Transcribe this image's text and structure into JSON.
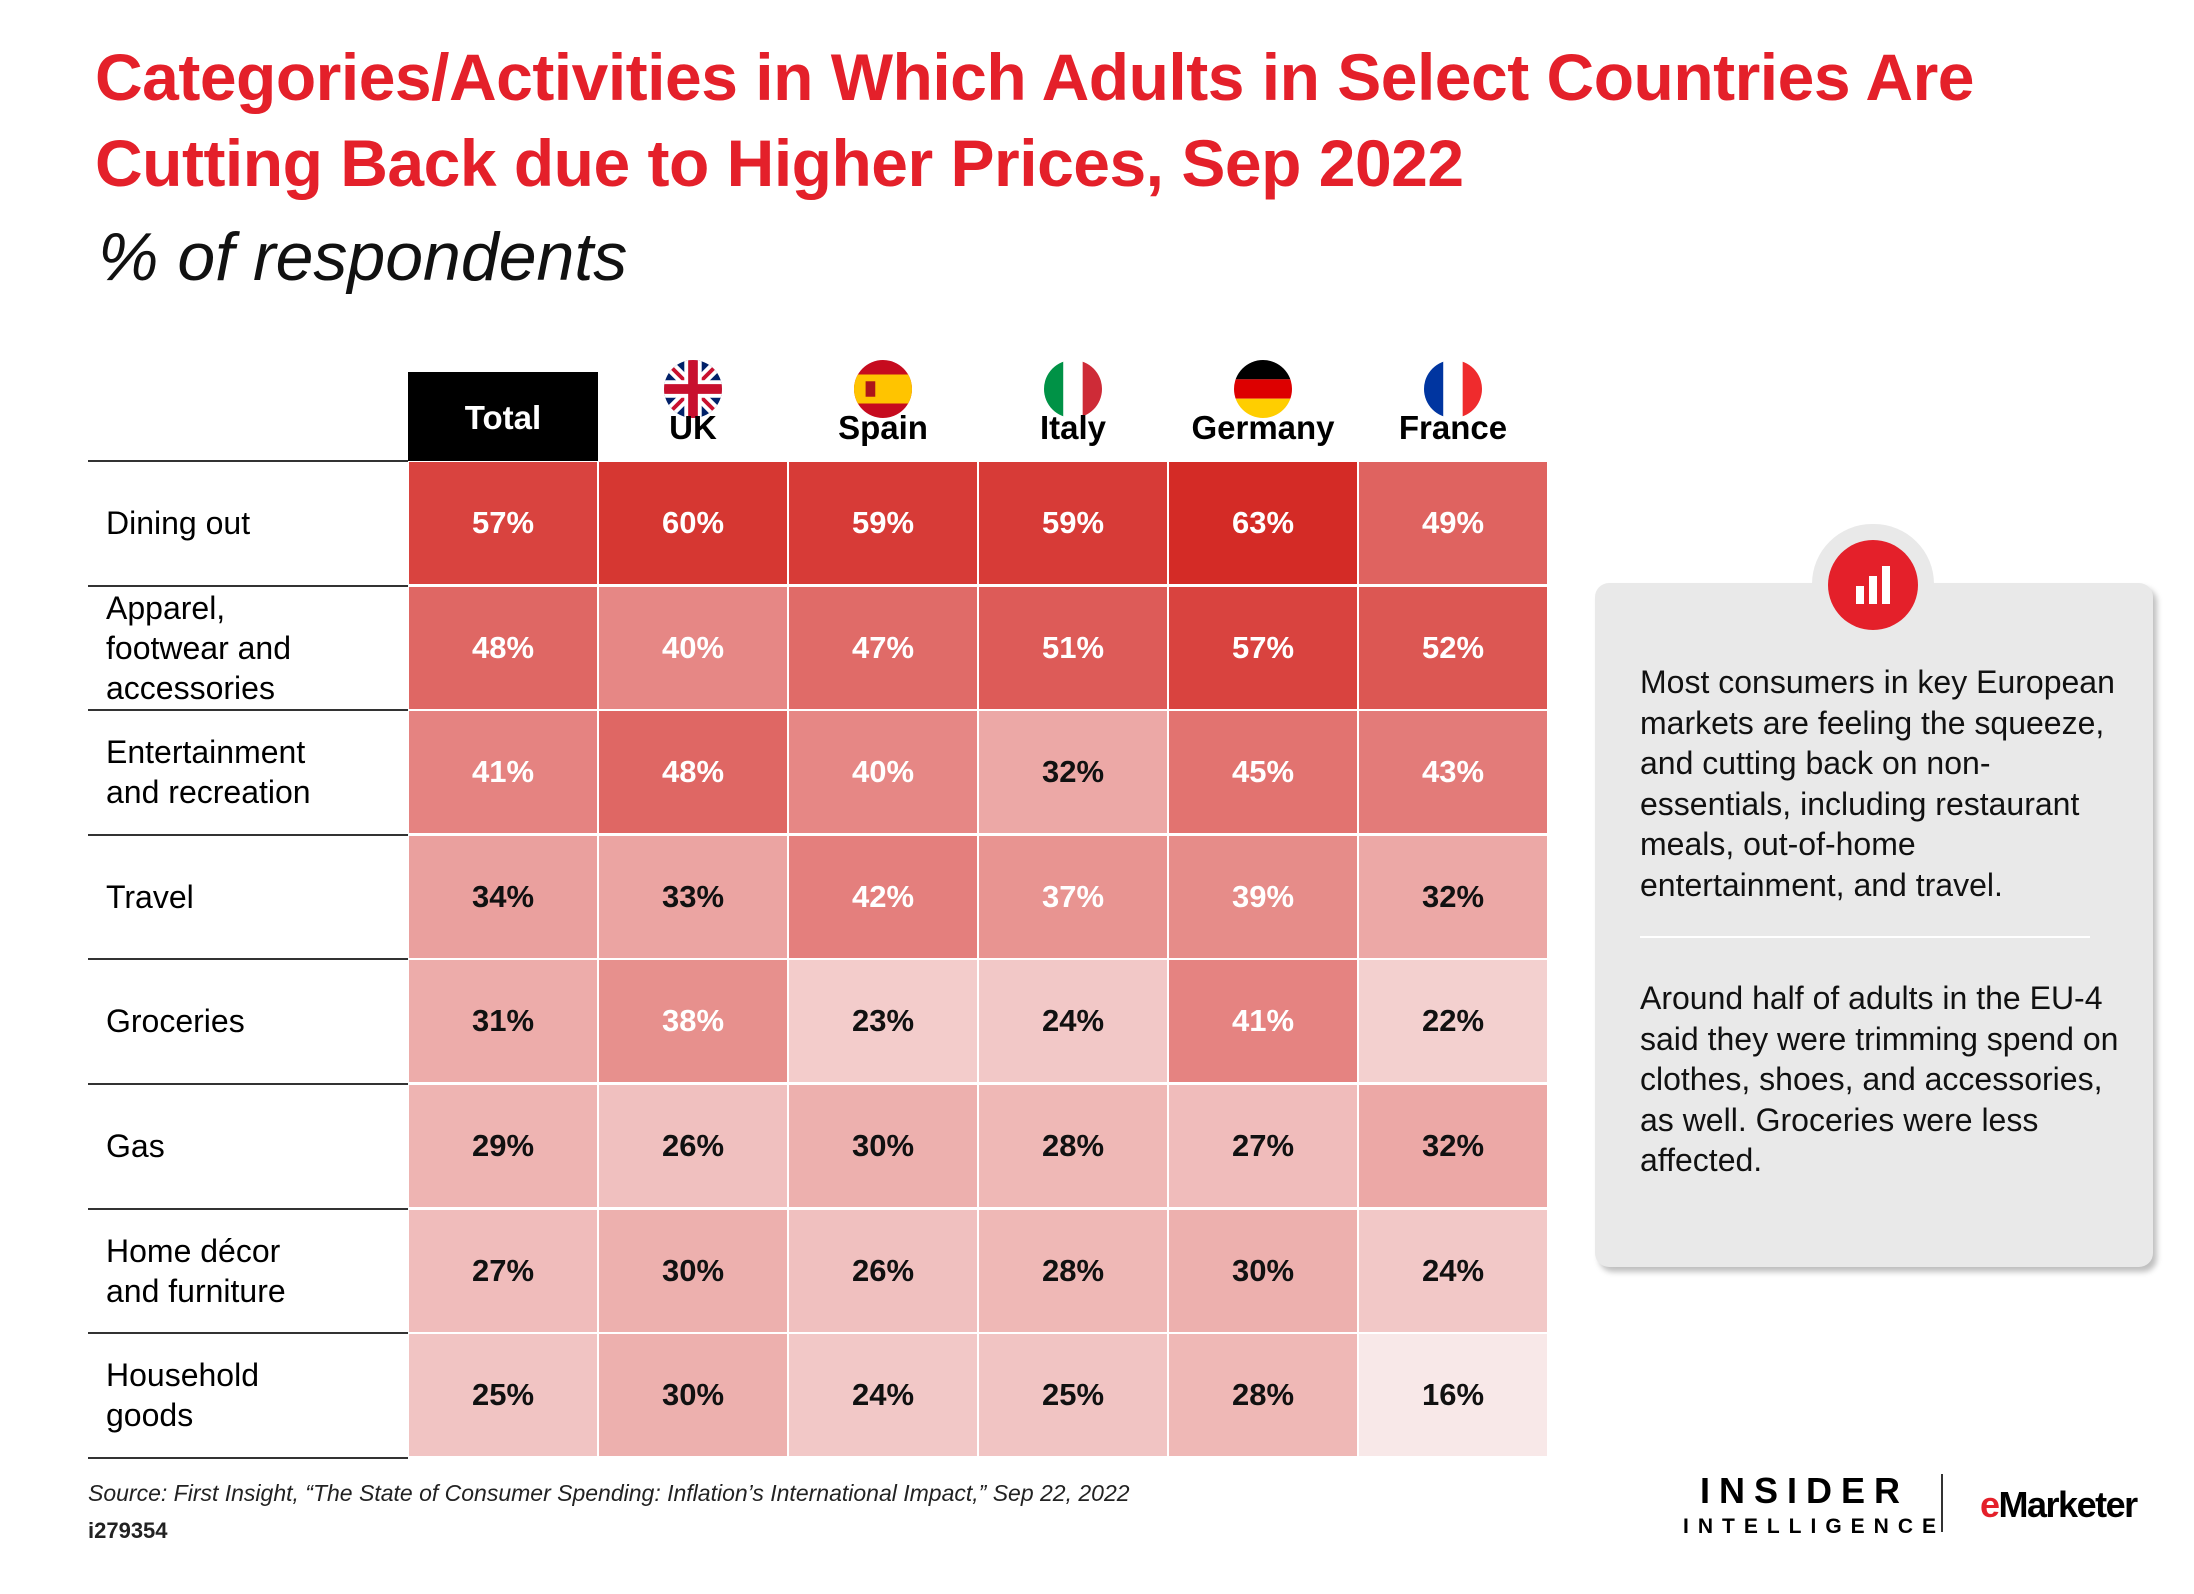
{
  "title": "Categories/Activities in Which Adults in Select Countries Are Cutting Back due to Higher Prices, Sep 2022",
  "subtitle": "% of respondents",
  "chart_data": {
    "type": "table",
    "columns": [
      "Total",
      "UK",
      "Spain",
      "Italy",
      "Germany",
      "France"
    ],
    "rows": [
      {
        "label": "Dining out",
        "values": [
          57,
          60,
          59,
          59,
          63,
          49
        ]
      },
      {
        "label": "Apparel, footwear and accessories",
        "values": [
          48,
          40,
          47,
          51,
          57,
          52
        ]
      },
      {
        "label": "Entertainment and recreation",
        "values": [
          41,
          48,
          40,
          32,
          45,
          43
        ]
      },
      {
        "label": "Travel",
        "values": [
          34,
          33,
          42,
          37,
          39,
          32
        ]
      },
      {
        "label": "Groceries",
        "values": [
          31,
          38,
          23,
          24,
          41,
          22
        ]
      },
      {
        "label": "Gas",
        "values": [
          29,
          26,
          30,
          28,
          27,
          32
        ]
      },
      {
        "label": "Home décor and furniture",
        "values": [
          27,
          30,
          26,
          28,
          30,
          24
        ]
      },
      {
        "label": "Household goods",
        "values": [
          25,
          30,
          24,
          25,
          28,
          16
        ]
      }
    ],
    "unit": "%",
    "color_scale": {
      "low": "#f8e8e8",
      "high": "#d42b26"
    }
  },
  "callout": {
    "icon": "bar-chart-icon",
    "p1": "Most consumers in key European markets are feeling the squeeze, and cutting back on non-essentials, including restaurant meals, out-of-home entertainment, and travel.",
    "p2": "Around half of adults in the EU-4 said they were trimming spend on clothes, shoes, and accessories, as well. Groceries were less affected."
  },
  "source": "Source: First Insight, “The State of Consumer Spending: Inflation’s International Impact,” Sep 22, 2022",
  "chart_id": "i279354",
  "logo": {
    "insider": "INSIDER",
    "intelligence": "INTELLIGENCE",
    "emarketer_e": "e",
    "emarketer_rest": "Marketer"
  }
}
